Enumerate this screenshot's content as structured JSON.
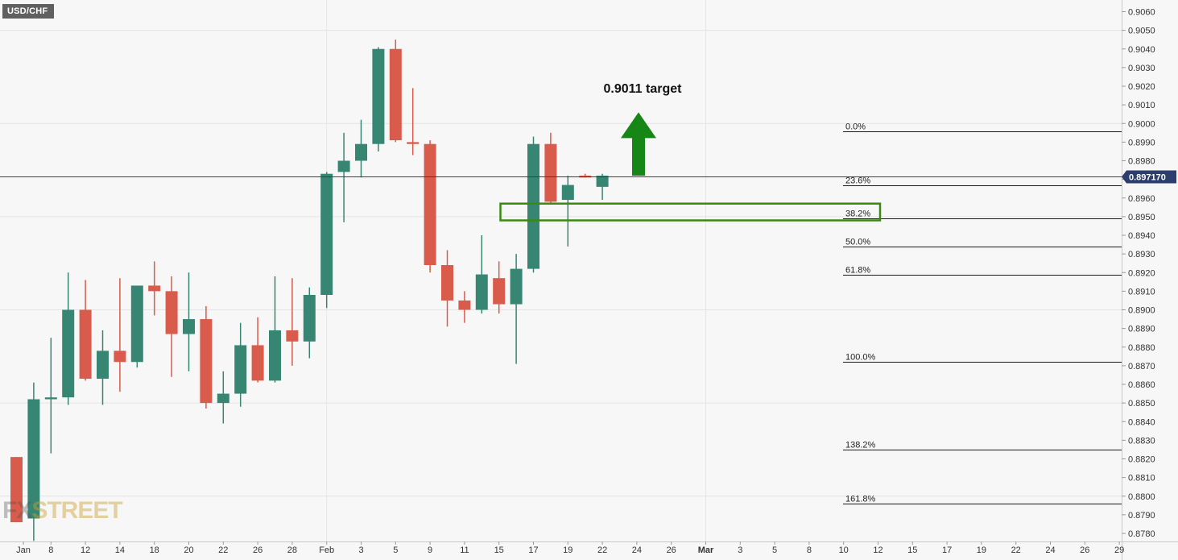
{
  "header": {
    "symbol": "USD/CHF"
  },
  "watermark": {
    "logo_text": "FXSTREET"
  },
  "colors": {
    "bullish": "#378674",
    "bearish": "#d95b4b",
    "current_price_line": "#2c3e6b",
    "zone": "#3a8a12",
    "arrow": "#168716",
    "price_badge_bg": "#2c3e6b"
  },
  "chart_data": {
    "type": "candlestick",
    "title": "USD/CHF",
    "ylim": [
      0.8776,
      0.9066
    ],
    "y_ticks": [
      "0.9060",
      "0.9050",
      "0.9040",
      "0.9030",
      "0.9020",
      "0.9010",
      "0.9000",
      "0.8990",
      "0.8980",
      "0.8970",
      "0.8960",
      "0.8950",
      "0.8940",
      "0.8930",
      "0.8920",
      "0.8910",
      "0.8900",
      "0.8890",
      "0.8880",
      "0.8870",
      "0.8860",
      "0.8850",
      "0.8840",
      "0.8830",
      "0.8820",
      "0.8810",
      "0.8800",
      "0.8790",
      "0.8780"
    ],
    "x_ticks": [
      {
        "label": "Jan",
        "bar": 0.4,
        "bold": false
      },
      {
        "label": "8",
        "bar": 2,
        "bold": false
      },
      {
        "label": "12",
        "bar": 4,
        "bold": false
      },
      {
        "label": "14",
        "bar": 6,
        "bold": false
      },
      {
        "label": "18",
        "bar": 8,
        "bold": false
      },
      {
        "label": "20",
        "bar": 10,
        "bold": false
      },
      {
        "label": "22",
        "bar": 12,
        "bold": false
      },
      {
        "label": "26",
        "bar": 14,
        "bold": false
      },
      {
        "label": "28",
        "bar": 16,
        "bold": false
      },
      {
        "label": "Feb",
        "bar": 18,
        "bold": false
      },
      {
        "label": "3",
        "bar": 20,
        "bold": false
      },
      {
        "label": "5",
        "bar": 22,
        "bold": false
      },
      {
        "label": "9",
        "bar": 24,
        "bold": false
      },
      {
        "label": "11",
        "bar": 26,
        "bold": false
      },
      {
        "label": "15",
        "bar": 28,
        "bold": false
      },
      {
        "label": "17",
        "bar": 30,
        "bold": false
      },
      {
        "label": "19",
        "bar": 32,
        "bold": false
      },
      {
        "label": "22",
        "bar": 34,
        "bold": false
      },
      {
        "label": "24",
        "bar": 36,
        "bold": false
      },
      {
        "label": "26",
        "bar": 38,
        "bold": false
      },
      {
        "label": "Mar",
        "bar": 40,
        "bold": true
      },
      {
        "label": "3",
        "bar": 42,
        "bold": false
      },
      {
        "label": "5",
        "bar": 44,
        "bold": false
      },
      {
        "label": "8",
        "bar": 46,
        "bold": false
      },
      {
        "label": "10",
        "bar": 48,
        "bold": false
      },
      {
        "label": "12",
        "bar": 50,
        "bold": false
      },
      {
        "label": "15",
        "bar": 52,
        "bold": false
      },
      {
        "label": "17",
        "bar": 54,
        "bold": false
      },
      {
        "label": "19",
        "bar": 56,
        "bold": false
      },
      {
        "label": "22",
        "bar": 58,
        "bold": false
      },
      {
        "label": "24",
        "bar": 60,
        "bold": false
      },
      {
        "label": "26",
        "bar": 62,
        "bold": false
      },
      {
        "label": "29",
        "bar": 64,
        "bold": false
      }
    ],
    "candles": [
      {
        "o": 0.8821,
        "h": 0.8821,
        "l": 0.8786,
        "c": 0.8786
      },
      {
        "o": 0.8788,
        "h": 0.8861,
        "l": 0.8776,
        "c": 0.8852
      },
      {
        "o": 0.8852,
        "h": 0.8885,
        "l": 0.8823,
        "c": 0.8853
      },
      {
        "o": 0.8853,
        "h": 0.892,
        "l": 0.8849,
        "c": 0.89
      },
      {
        "o": 0.89,
        "h": 0.8916,
        "l": 0.8862,
        "c": 0.8863
      },
      {
        "o": 0.8863,
        "h": 0.8889,
        "l": 0.8849,
        "c": 0.8878
      },
      {
        "o": 0.8878,
        "h": 0.8917,
        "l": 0.8856,
        "c": 0.8872
      },
      {
        "o": 0.8872,
        "h": 0.8913,
        "l": 0.8869,
        "c": 0.8913
      },
      {
        "o": 0.8913,
        "h": 0.8926,
        "l": 0.8897,
        "c": 0.891
      },
      {
        "o": 0.891,
        "h": 0.8918,
        "l": 0.8864,
        "c": 0.8887
      },
      {
        "o": 0.8887,
        "h": 0.892,
        "l": 0.8867,
        "c": 0.8895
      },
      {
        "o": 0.8895,
        "h": 0.8902,
        "l": 0.8847,
        "c": 0.885
      },
      {
        "o": 0.885,
        "h": 0.8867,
        "l": 0.8839,
        "c": 0.8855
      },
      {
        "o": 0.8855,
        "h": 0.8893,
        "l": 0.8848,
        "c": 0.8881
      },
      {
        "o": 0.8881,
        "h": 0.8896,
        "l": 0.8861,
        "c": 0.8862
      },
      {
        "o": 0.8862,
        "h": 0.8918,
        "l": 0.8861,
        "c": 0.8889
      },
      {
        "o": 0.8889,
        "h": 0.8917,
        "l": 0.887,
        "c": 0.8883
      },
      {
        "o": 0.8883,
        "h": 0.8912,
        "l": 0.8874,
        "c": 0.8908
      },
      {
        "o": 0.8908,
        "h": 0.8974,
        "l": 0.8901,
        "c": 0.8973
      },
      {
        "o": 0.8974,
        "h": 0.8995,
        "l": 0.8947,
        "c": 0.898
      },
      {
        "o": 0.898,
        "h": 0.9002,
        "l": 0.8971,
        "c": 0.8989
      },
      {
        "o": 0.8989,
        "h": 0.9041,
        "l": 0.8985,
        "c": 0.904
      },
      {
        "o": 0.904,
        "h": 0.9045,
        "l": 0.899,
        "c": 0.8991
      },
      {
        "o": 0.899,
        "h": 0.9019,
        "l": 0.8983,
        "c": 0.8989
      },
      {
        "o": 0.8989,
        "h": 0.8991,
        "l": 0.892,
        "c": 0.8924
      },
      {
        "o": 0.8924,
        "h": 0.8932,
        "l": 0.8891,
        "c": 0.8905
      },
      {
        "o": 0.8905,
        "h": 0.891,
        "l": 0.8893,
        "c": 0.89
      },
      {
        "o": 0.89,
        "h": 0.894,
        "l": 0.8898,
        "c": 0.8919
      },
      {
        "o": 0.8917,
        "h": 0.8926,
        "l": 0.8898,
        "c": 0.8903
      },
      {
        "o": 0.8903,
        "h": 0.893,
        "l": 0.8871,
        "c": 0.8922
      },
      {
        "o": 0.8922,
        "h": 0.8993,
        "l": 0.892,
        "c": 0.8989
      },
      {
        "o": 0.8989,
        "h": 0.8995,
        "l": 0.8957,
        "c": 0.8958
      },
      {
        "o": 0.8959,
        "h": 0.8972,
        "l": 0.8934,
        "c": 0.8967
      },
      {
        "o": 0.8972,
        "h": 0.8973,
        "l": 0.8971,
        "c": 0.8971
      },
      {
        "o": 0.8966,
        "h": 0.8973,
        "l": 0.8959,
        "c": 0.8972
      }
    ],
    "current_price": 0.89717,
    "current_price_label": "0.897170",
    "fibonacci": [
      {
        "label": "0.0%",
        "price": 0.8996
      },
      {
        "label": "23.6%",
        "price": 0.8967
      },
      {
        "label": "38.2%",
        "price": 0.8949
      },
      {
        "label": "50.0%",
        "price": 0.8934
      },
      {
        "label": "61.8%",
        "price": 0.8919
      },
      {
        "label": "100.0%",
        "price": 0.8872
      },
      {
        "label": "138.2%",
        "price": 0.8825
      },
      {
        "label": "161.8%",
        "price": 0.8796
      }
    ],
    "support_zone": {
      "price_low": 0.8948,
      "price_high": 0.8957
    },
    "annotation": {
      "text": "0.9011 target",
      "arrow_from_price": 0.8972,
      "arrow_to_price": 0.9006
    }
  }
}
